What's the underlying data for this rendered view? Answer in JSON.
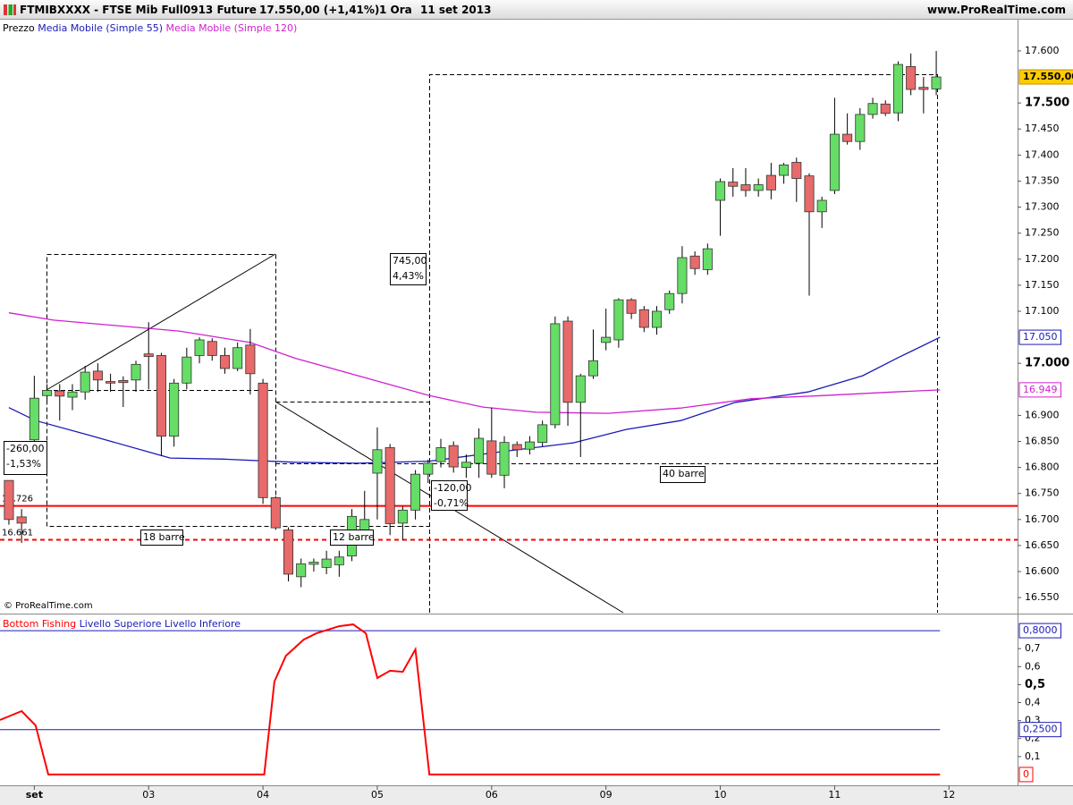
{
  "header": {
    "symbol": "FTMIBXXXX - FTSE Mib Full0913 Future",
    "price": "17.550,00 (+1,41%)",
    "period": "1 Ora",
    "date": "11 set 2013",
    "site": "www.ProRealTime.com"
  },
  "chart_data": [
    {
      "type": "candlestick",
      "copyright": "© ProRealTime.com",
      "candles": {
        "name": "Prezzo",
        "up_color": "#66dd66",
        "down_color": "#e86a6a",
        "last_label": "17.550,00",
        "open": [
          16775,
          16705,
          16853,
          16938,
          16947,
          16935,
          16945,
          16985,
          16965,
          16967,
          16968,
          17018,
          17015,
          16860,
          16962,
          17015,
          17042,
          17015,
          16990,
          17035,
          16962,
          16742,
          16680,
          16590,
          16614,
          16608,
          16613,
          16630,
          16680,
          16789,
          16838,
          16693,
          16718,
          16787,
          16811,
          16842,
          16800,
          16808,
          16851,
          16785,
          16844,
          16835,
          16848,
          16882,
          17081,
          16925,
          16976,
          17040,
          17045,
          17122,
          17103,
          17069,
          17103,
          17134,
          17206,
          17180,
          17313,
          17348,
          17343,
          17332,
          17361,
          17361,
          17386,
          17360,
          17291,
          17332,
          17440,
          17426,
          17478,
          17498,
          17481,
          17570,
          17530,
          17527
        ],
        "high": [
          16775,
          16720,
          16976,
          16960,
          16960,
          16960,
          16995,
          17000,
          16980,
          16975,
          17005,
          17079,
          17020,
          16970,
          17030,
          17050,
          17048,
          17030,
          17040,
          17066,
          16970,
          16745,
          16685,
          16625,
          16625,
          16640,
          16640,
          16720,
          16755,
          16877,
          16845,
          16725,
          16795,
          16815,
          16855,
          16850,
          16825,
          16875,
          16915,
          16860,
          16850,
          16860,
          16890,
          17090,
          17090,
          16980,
          17065,
          17105,
          17125,
          17125,
          17110,
          17110,
          17140,
          17225,
          17215,
          17230,
          17355,
          17375,
          17375,
          17355,
          17385,
          17385,
          17395,
          17365,
          17320,
          17510,
          17480,
          17490,
          17510,
          17505,
          17580,
          17595,
          17550,
          17600
        ],
        "low": [
          16690,
          16655,
          16840,
          16925,
          16890,
          16910,
          16930,
          16945,
          16945,
          16916,
          16945,
          16950,
          16822,
          16840,
          16950,
          17000,
          17005,
          16980,
          16985,
          16940,
          16730,
          16680,
          16581,
          16570,
          16600,
          16595,
          16590,
          16620,
          16670,
          16700,
          16670,
          16660,
          16700,
          16770,
          16800,
          16790,
          16780,
          16780,
          16780,
          16760,
          16820,
          16825,
          16840,
          16875,
          16880,
          16820,
          16970,
          17025,
          17030,
          17085,
          17060,
          17055,
          17095,
          17115,
          17170,
          17170,
          17245,
          17320,
          17320,
          17320,
          17315,
          17345,
          17310,
          17130,
          17260,
          17325,
          17420,
          17410,
          17470,
          17475,
          17465,
          17515,
          17480,
          17515
        ],
        "close": [
          16700,
          16693,
          16933,
          16948,
          16937,
          16945,
          16983,
          16968,
          16962,
          16963,
          16998,
          17013,
          16860,
          16962,
          17012,
          17045,
          17015,
          16990,
          17030,
          16980,
          16742,
          16684,
          16595,
          16615,
          16618,
          16624,
          16628,
          16706,
          16700,
          16834,
          16692,
          16718,
          16787,
          16808,
          16838,
          16801,
          16810,
          16856,
          16787,
          16848,
          16834,
          16849,
          16882,
          17076,
          16925,
          16976,
          17005,
          17050,
          17122,
          17096,
          17069,
          17100,
          17134,
          17203,
          17182,
          17220,
          17349,
          17340,
          17332,
          17343,
          17333,
          17381,
          17355,
          17291,
          17313,
          17440,
          17426,
          17478,
          17499,
          17480,
          17574,
          17526,
          17526,
          17550
        ]
      },
      "series": [
        {
          "name": "Media Mobile (Simple 55)",
          "color": "#1a1ab8",
          "value_label": "17.050",
          "x": [
            0,
            2.1,
            6.3,
            12.7,
            16.9,
            22.5,
            27.5,
            33.1,
            38.7,
            44.4,
            48.6,
            52.9,
            57.2,
            62.9,
            67.2,
            70,
            73.3
          ],
          "values": [
            16915,
            16890,
            16862,
            16818,
            16816,
            16810,
            16808,
            16812,
            16830,
            16847,
            16873,
            16890,
            16925,
            16945,
            16976,
            17011,
            17050
          ]
        },
        {
          "name": "Media Mobile (Simple 120)",
          "color": "#d020d0",
          "value_label": "16.949",
          "x": [
            0,
            3.5,
            7.7,
            13.4,
            19,
            22.5,
            27.5,
            33.1,
            37.3,
            41.5,
            47.2,
            52.9,
            58.4,
            64,
            69.7,
            73.3
          ],
          "values": [
            17097,
            17083,
            17074,
            17062,
            17040,
            17010,
            16976,
            16938,
            16916,
            16906,
            16904,
            16914,
            16932,
            16938,
            16945,
            16949
          ]
        }
      ],
      "hlines": [
        {
          "value": 16726,
          "label": "16.726",
          "color": "#ff0000",
          "dashed": false
        },
        {
          "value": 16661,
          "label": "16.661",
          "color": "#ff0000",
          "dashed": true
        }
      ],
      "annotations": [
        {
          "lines": [
            "-260,00",
            "-1,53%"
          ]
        },
        {
          "lines": [
            "18 barre"
          ]
        },
        {
          "lines": [
            "745,00",
            "4,43%"
          ]
        },
        {
          "lines": [
            "-120,00",
            "-0,71%"
          ]
        },
        {
          "lines": [
            "12 barre"
          ]
        },
        {
          "lines": [
            "40 barre"
          ]
        }
      ],
      "xlim": [
        -0.7,
        79.4
      ],
      "ylim": [
        16521,
        17660
      ],
      "yticks": [
        {
          "value": 17600,
          "label": "17.600"
        },
        {
          "value": 17500,
          "label": "17.500"
        },
        {
          "value": 17450,
          "label": "17.450"
        },
        {
          "value": 17400,
          "label": "17.400"
        },
        {
          "value": 17350,
          "label": "17.350"
        },
        {
          "value": 17300,
          "label": "17.300"
        },
        {
          "value": 17250,
          "label": "17.250"
        },
        {
          "value": 17200,
          "label": "17.200"
        },
        {
          "value": 17150,
          "label": "17.150"
        },
        {
          "value": 17100,
          "label": "17.100"
        },
        {
          "value": 17000,
          "label": "17.000"
        },
        {
          "value": 16900,
          "label": "16.900"
        },
        {
          "value": 16850,
          "label": "16.850"
        },
        {
          "value": 16800,
          "label": "16.800"
        },
        {
          "value": 16750,
          "label": "16.750"
        },
        {
          "value": 16700,
          "label": "16.700"
        },
        {
          "value": 16650,
          "label": "16.650"
        },
        {
          "value": 16600,
          "label": "16.600"
        },
        {
          "value": 16550,
          "label": "16.550"
        }
      ]
    },
    {
      "type": "line",
      "series": [
        {
          "name": "Bottom Fishing",
          "color": "#ff0000",
          "value_label": "0",
          "x": [
            -0.7,
            1.0,
            2.1,
            3.1,
            20.1,
            20.9,
            21.8,
            23.2,
            24.2,
            26,
            27.1,
            28.1,
            29,
            30,
            31,
            32,
            33.1,
            73.3
          ],
          "values": [
            0.303,
            0.353,
            0.273,
            0,
            0,
            0.517,
            0.66,
            0.75,
            0.785,
            0.825,
            0.835,
            0.785,
            0.537,
            0.577,
            0.571,
            0.696,
            0,
            0
          ]
        },
        {
          "name": "Livello Superiore",
          "color": "#1a1ab8",
          "value_label": "0,8000",
          "x": [
            -0.7,
            73.3
          ],
          "values": [
            0.8,
            0.8
          ]
        },
        {
          "name": "Livello Inferiore",
          "color": "#1a1ab8",
          "value_label": "0,2500",
          "x": [
            -0.7,
            73.3
          ],
          "values": [
            0.25,
            0.25
          ]
        }
      ],
      "xlim": [
        -0.7,
        79.4
      ],
      "ylim": [
        -0.06,
        0.885
      ],
      "yticks": [
        {
          "value": 0.7,
          "label": "0,7"
        },
        {
          "value": 0.6,
          "label": "0,6"
        },
        {
          "value": 0.5,
          "label": "0,5"
        },
        {
          "value": 0.4,
          "label": "0,4"
        },
        {
          "value": 0.3,
          "label": "0,3"
        },
        {
          "value": 0.2,
          "label": "0,2"
        },
        {
          "value": 0.1,
          "label": "0,1"
        }
      ],
      "xticks": [
        {
          "value": 2,
          "label": "set"
        },
        {
          "value": 11,
          "label": "03"
        },
        {
          "value": 20,
          "label": "04"
        },
        {
          "value": 29,
          "label": "05"
        },
        {
          "value": 38,
          "label": "06"
        },
        {
          "value": 47,
          "label": "09"
        },
        {
          "value": 56,
          "label": "10"
        },
        {
          "value": 65,
          "label": "11"
        },
        {
          "value": 74,
          "label": "12"
        }
      ]
    }
  ]
}
